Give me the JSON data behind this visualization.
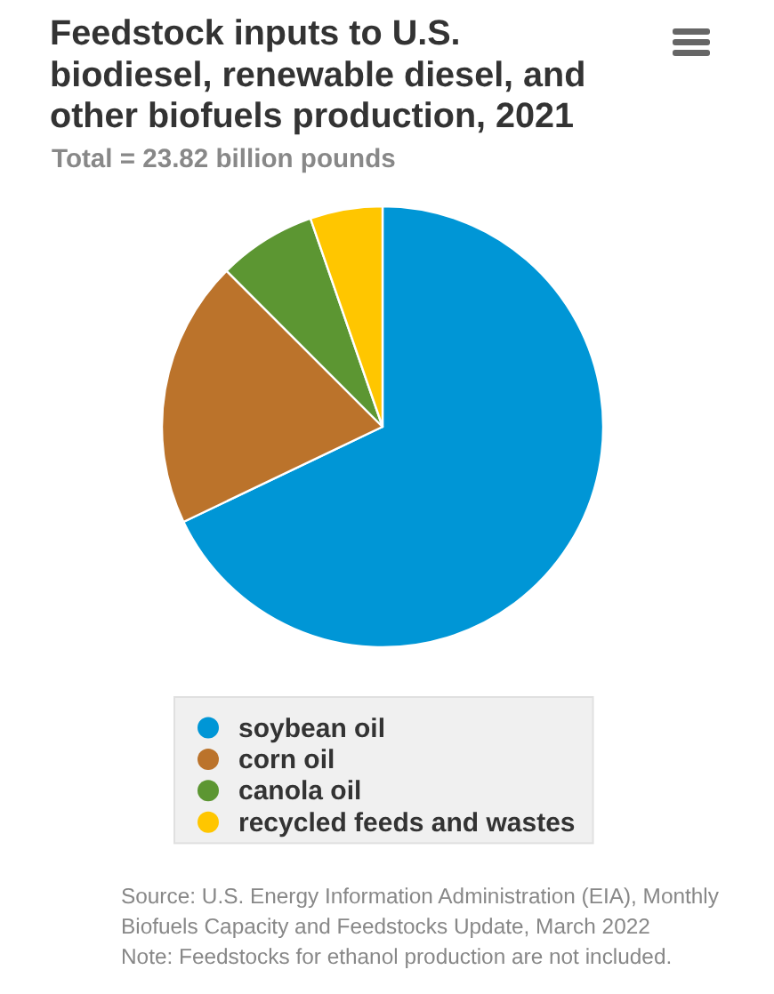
{
  "chart_data": {
    "type": "pie",
    "title": "Feedstock inputs to U.S. biodiesel, renewable diesel, and other biofuels production, 2021",
    "subtitle": "Total = 23.82 billion pounds",
    "categories": [
      "soybean oil",
      "corn oil",
      "canola oil",
      "recycled feeds and wastes"
    ],
    "values": [
      67.9,
      19.6,
      7.2,
      5.3
    ],
    "colors": [
      "#0096d6",
      "#bb732b",
      "#5c9632",
      "#ffc600"
    ],
    "legend": "bottom",
    "annotations": [
      "Source: U.S. Energy Information Administration (EIA), Monthly Biofuels Capacity and Feedstocks Update, March 2022",
      "Note: Feedstocks for ethanol production are not included."
    ]
  }
}
